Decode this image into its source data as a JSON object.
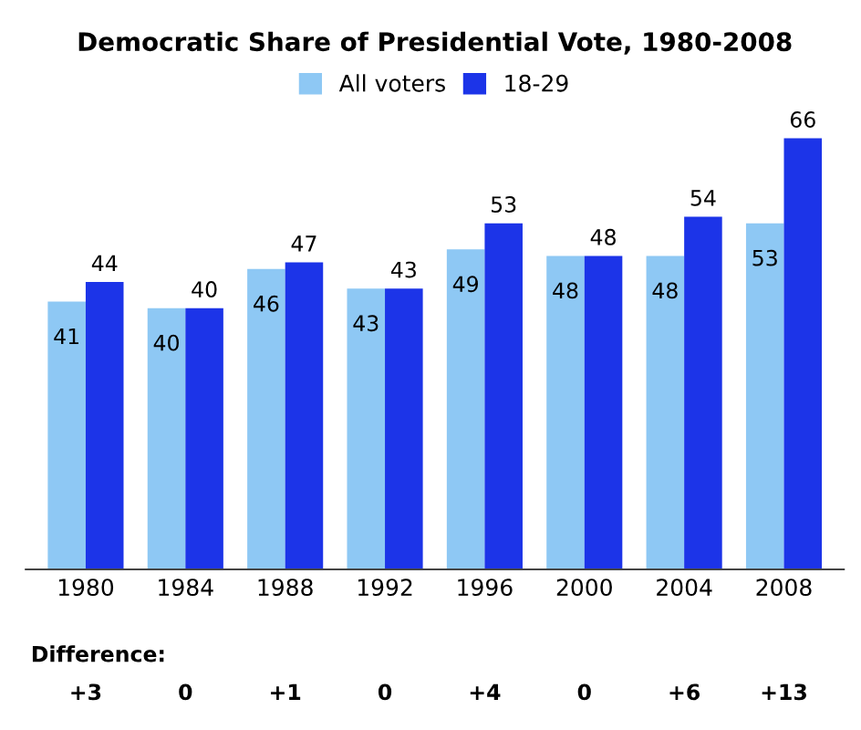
{
  "chart_data": {
    "type": "bar",
    "title": "Democratic Share of Presidential Vote, 1980-2008",
    "categories": [
      "1980",
      "1984",
      "1988",
      "1992",
      "1996",
      "2000",
      "2004",
      "2008"
    ],
    "series": [
      {
        "name": "All voters",
        "color": "#8ec8f4",
        "values": [
          41,
          40,
          46,
          43,
          49,
          48,
          48,
          53
        ]
      },
      {
        "name": "18-29",
        "color": "#1c34e8",
        "values": [
          44,
          40,
          47,
          43,
          53,
          48,
          54,
          66
        ]
      }
    ],
    "tick_labels": "x",
    "data_labels": true,
    "legend": "top",
    "grid": false,
    "annotations": [
      "Difference:",
      "+3",
      "0",
      "+1",
      "0",
      "+4",
      "0",
      "+6",
      "+13"
    ]
  }
}
